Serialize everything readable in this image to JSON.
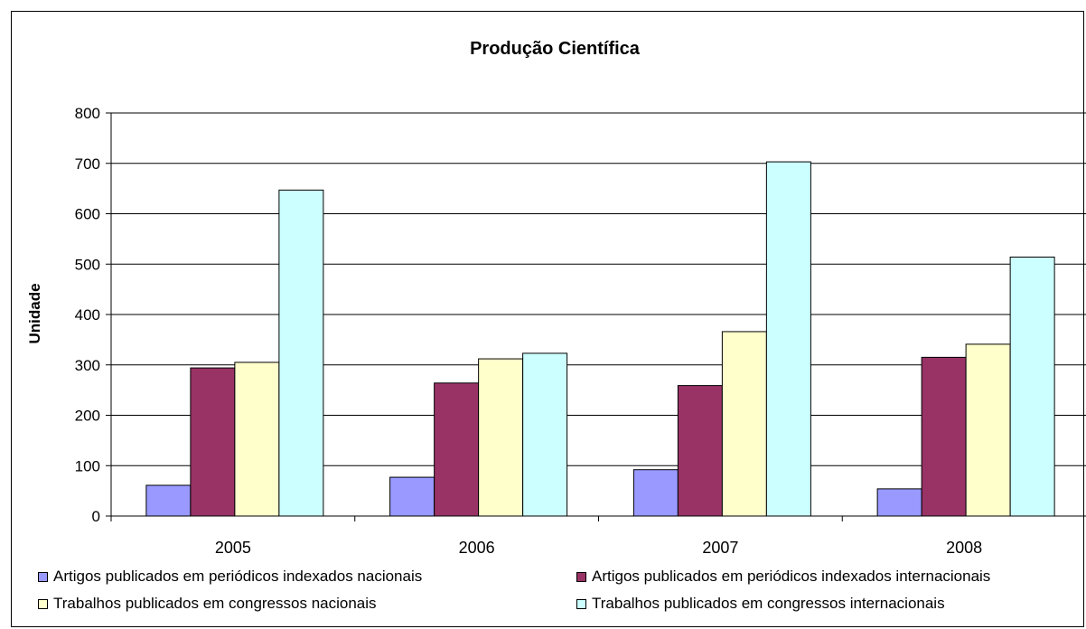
{
  "chart_data": {
    "type": "bar",
    "title": "Produção Científica",
    "xlabel": "",
    "ylabel": "Unidade",
    "ylim": [
      0,
      800
    ],
    "yticks": [
      0,
      100,
      200,
      300,
      400,
      500,
      600,
      700,
      800
    ],
    "grid": true,
    "legend_position": "bottom",
    "categories": [
      "2005",
      "2006",
      "2007",
      "2008"
    ],
    "series": [
      {
        "name": "Artigos publicados em periódicos indexados nacionais",
        "color": "#9999ff",
        "values": [
          61,
          77,
          92,
          54
        ]
      },
      {
        "name": "Artigos publicados em periódicos indexados internacionais",
        "color": "#993366",
        "values": [
          294,
          264,
          259,
          315
        ]
      },
      {
        "name": "Trabalhos publicados em congressos nacionais",
        "color": "#ffffcc",
        "values": [
          305,
          312,
          366,
          341
        ]
      },
      {
        "name": "Trabalhos publicados em congressos internacionais",
        "color": "#ccffff",
        "values": [
          647,
          323,
          703,
          514
        ]
      }
    ]
  }
}
